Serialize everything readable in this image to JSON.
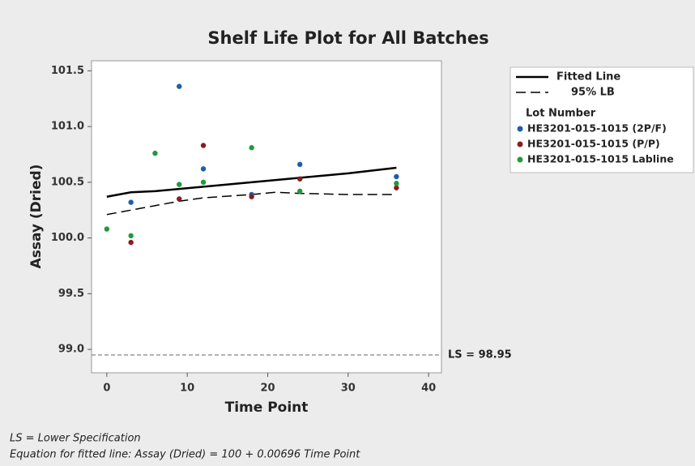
{
  "chart_data": {
    "type": "scatter",
    "title": "Shelf Life Plot for All Batches",
    "x_label": "Time Point",
    "y_label": "Assay (Dried)",
    "xlim": [
      -1.9,
      41.6
    ],
    "ylim": [
      98.79,
      101.59
    ],
    "xticks": [
      0,
      10,
      20,
      30,
      40
    ],
    "yticks": [
      {
        "value": 99,
        "label": "99.0"
      },
      99.5,
      {
        "value": 100,
        "label": "100.0"
      },
      100.5,
      {
        "value": 101,
        "label": "101.0"
      },
      101.5
    ],
    "legend_title": "Lot Number",
    "legend_position": "right",
    "series": [
      {
        "name": "HE3201-015-1015 (2P/F)",
        "color": "#1f5ea8",
        "x": [
          3,
          9,
          12,
          18,
          24,
          36
        ],
        "values": [
          100.32,
          101.36,
          100.62,
          100.39,
          100.66,
          100.55
        ]
      },
      {
        "name": "HE3201-015-1015 (P/P)",
        "color": "#8c1c1c",
        "x": [
          3,
          9,
          12,
          18,
          24,
          36
        ],
        "values": [
          99.96,
          100.35,
          100.83,
          100.37,
          100.53,
          100.45
        ]
      },
      {
        "name": "HE3201-015-1015 Labline",
        "color": "#1f9a3c",
        "x": [
          0,
          3,
          6,
          9,
          12,
          18,
          24,
          36
        ],
        "values": [
          100.08,
          100.02,
          100.76,
          100.48,
          100.5,
          100.81,
          100.42,
          100.49
        ]
      }
    ],
    "fitted_line": {
      "name": "Fitted Line",
      "color": "#000000",
      "x": [
        0,
        3,
        6,
        9,
        12,
        18,
        24,
        30,
        36
      ],
      "values": [
        100.37,
        100.41,
        100.42,
        100.44,
        100.46,
        100.5,
        100.54,
        100.58,
        100.63
      ]
    },
    "lower_bound": {
      "name": "95% LB",
      "color": "#000000",
      "x": [
        0,
        3,
        6,
        9,
        12,
        18,
        21,
        24,
        30,
        36
      ],
      "values": [
        100.21,
        100.25,
        100.29,
        100.33,
        100.36,
        100.39,
        100.41,
        100.4,
        100.39,
        100.39
      ]
    },
    "spec_limit": {
      "value": 98.95,
      "label": "LS = 98.95",
      "color": "#999999"
    },
    "footnotes": [
      "LS = Lower Specification",
      "Equation for fitted line: Assay (Dried) = 100 + 0.00696 Time Point"
    ]
  }
}
